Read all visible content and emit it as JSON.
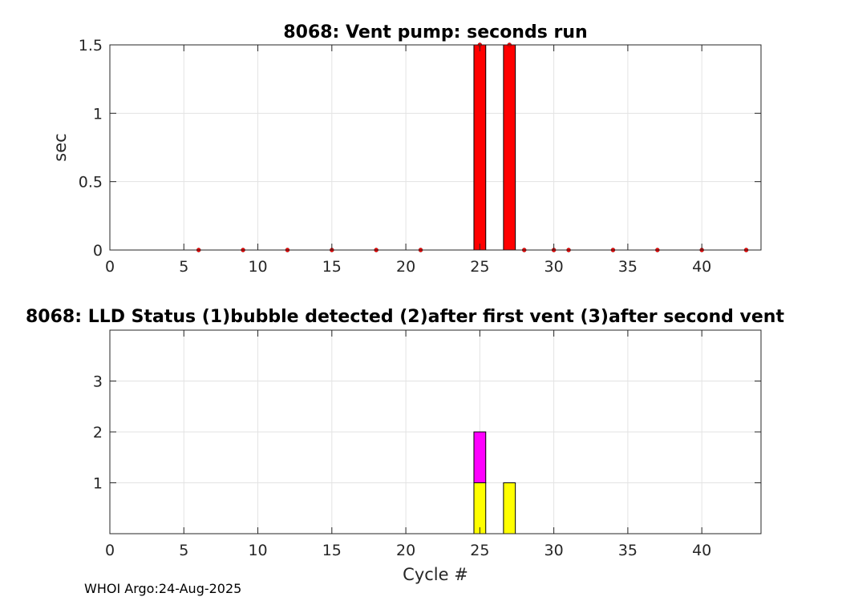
{
  "chart_data": [
    {
      "type": "bar",
      "title": "8068: Vent pump: seconds run",
      "xlabel": "",
      "ylabel": "sec",
      "xlim": [
        0,
        44
      ],
      "ylim": [
        0,
        1.5
      ],
      "xticks": [
        "0",
        "5",
        "10",
        "15",
        "20",
        "25",
        "30",
        "35",
        "40"
      ],
      "yticks": [
        "0",
        "0.5",
        "1",
        "1.5"
      ],
      "grid": true,
      "bar_color": "#ff0000",
      "marker_color": "#ff0000",
      "bars": [
        {
          "x": 25,
          "y": 1.5
        },
        {
          "x": 27,
          "y": 1.5
        }
      ],
      "points": [
        {
          "x": 6,
          "y": 0
        },
        {
          "x": 9,
          "y": 0
        },
        {
          "x": 12,
          "y": 0
        },
        {
          "x": 15,
          "y": 0
        },
        {
          "x": 18,
          "y": 0
        },
        {
          "x": 21,
          "y": 0
        },
        {
          "x": 25,
          "y": 1.5
        },
        {
          "x": 27,
          "y": 1.5
        },
        {
          "x": 28,
          "y": 0
        },
        {
          "x": 30,
          "y": 0
        },
        {
          "x": 31,
          "y": 0
        },
        {
          "x": 34,
          "y": 0
        },
        {
          "x": 37,
          "y": 0
        },
        {
          "x": 40,
          "y": 0
        },
        {
          "x": 43,
          "y": 0
        }
      ]
    },
    {
      "type": "bar",
      "stacked": true,
      "title": "8068: LLD Status   (1)bubble detected   (2)after first vent  (3)after second vent",
      "xlabel": "Cycle #",
      "ylabel": "",
      "xlim": [
        0,
        44
      ],
      "ylim": [
        0,
        4
      ],
      "xticks": [
        "0",
        "5",
        "10",
        "15",
        "20",
        "25",
        "30",
        "35",
        "40"
      ],
      "yticks": [
        "1",
        "2",
        "3"
      ],
      "grid": true,
      "series": [
        {
          "color": "#ffff00",
          "points": [
            {
              "x": 25,
              "y": 1
            },
            {
              "x": 27,
              "y": 1
            }
          ]
        },
        {
          "color": "#ff00ff",
          "points": [
            {
              "x": 25,
              "y": 1
            }
          ]
        }
      ]
    }
  ],
  "footer": "WHOI Argo:24-Aug-2025"
}
